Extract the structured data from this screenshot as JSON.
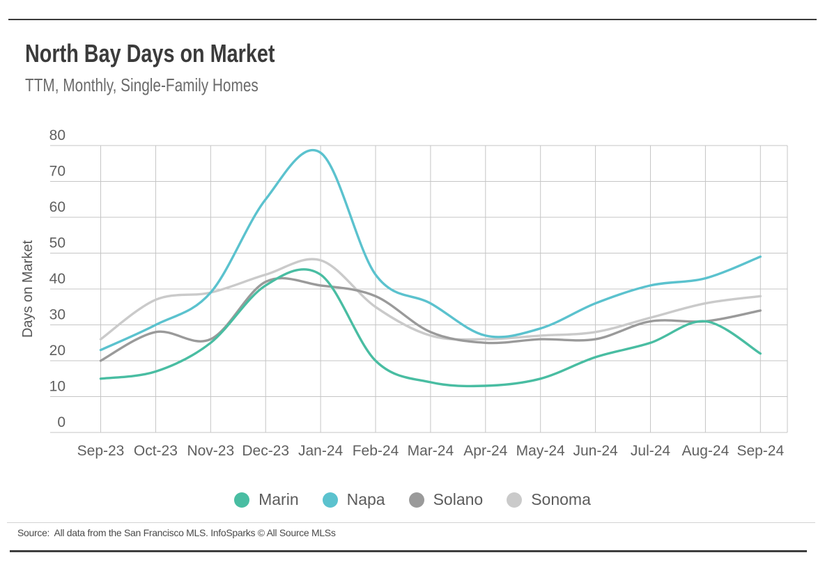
{
  "page": {
    "title": "North Bay Days on Market",
    "subtitle": "TTM, Monthly, Single-Family Homes",
    "source": "Source:  All data from the San Francisco MLS. InfoSparks © All Source MLSs"
  },
  "chart_data": {
    "type": "line",
    "title": "North Bay Days on Market",
    "subtitle": "TTM, Monthly, Single-Family Homes",
    "xlabel": "",
    "ylabel": "Days on Market",
    "x": [
      "Sep-23",
      "Oct-23",
      "Nov-23",
      "Dec-23",
      "Jan-24",
      "Feb-24",
      "Mar-24",
      "Apr-24",
      "May-24",
      "Jun-24",
      "Jul-24",
      "Aug-24",
      "Sep-24"
    ],
    "yticks": [
      0,
      10,
      20,
      30,
      40,
      50,
      60,
      70,
      80
    ],
    "ylim": [
      0,
      80
    ],
    "grid": true,
    "legend_position": "bottom",
    "line_smoothing": "spline",
    "series": [
      {
        "name": "Marin",
        "color": "#49bda2",
        "values": [
          15,
          17,
          25,
          41,
          44,
          20,
          14,
          13,
          15,
          21,
          25,
          31,
          22
        ]
      },
      {
        "name": "Napa",
        "color": "#5bc2ce",
        "values": [
          23,
          30,
          39,
          65,
          78,
          44,
          36,
          27,
          29,
          36,
          41,
          43,
          49
        ]
      },
      {
        "name": "Solano",
        "color": "#9a9a9a",
        "values": [
          20,
          28,
          26,
          42,
          41,
          38,
          28,
          25,
          26,
          26,
          31,
          31,
          34
        ]
      },
      {
        "name": "Sonoma",
        "color": "#cacaca",
        "values": [
          26,
          37,
          39,
          44,
          48,
          35,
          27,
          26,
          27,
          28,
          32,
          36,
          38
        ]
      }
    ]
  }
}
